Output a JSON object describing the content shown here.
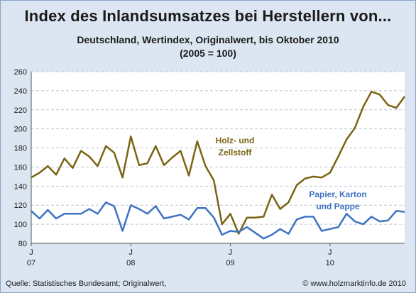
{
  "header": {
    "title": "Index des Inlandsumsatzes bei Herstellern von...",
    "subtitle": "Deutschland, Wertindex, Originalwert, bis Oktober 2010",
    "base_note": "(2005 = 100)"
  },
  "footer": {
    "source": "Quelle: Statistisches Bundesamt; Originalwert,",
    "copyright": "© www.holzmarktinfo.de 2010"
  },
  "chart_data": {
    "type": "line",
    "title": "Index des Inlandsumsatzes bei Herstellern von...",
    "subtitle": "Deutschland, Wertindex, Originalwert, bis Oktober 2010",
    "ylim": [
      80,
      260
    ],
    "yticks": [
      80,
      100,
      120,
      140,
      160,
      180,
      200,
      220,
      240,
      260
    ],
    "grid": true,
    "x_tick_labels": [
      {
        "month": "J",
        "year": "07",
        "index": 0
      },
      {
        "month": "J",
        "year": "08",
        "index": 12
      },
      {
        "month": "J",
        "year": "09",
        "index": 24
      },
      {
        "month": "J",
        "year": "10",
        "index": 36
      }
    ],
    "x_count": 46,
    "series": [
      {
        "name": "Holz- und Zellstoff",
        "label_lines": [
          "Holz- und",
          "Zellstoff"
        ],
        "color": "#7a6412",
        "values": [
          149,
          154,
          161,
          152,
          169,
          159,
          177,
          171,
          161,
          182,
          175,
          149,
          192,
          162,
          164,
          182,
          162,
          170,
          177,
          151,
          187,
          161,
          146,
          100,
          111,
          90,
          107,
          107,
          108,
          131,
          116,
          123,
          141,
          148,
          150,
          149,
          154,
          171,
          189,
          201,
          223,
          239,
          236,
          225,
          222,
          234
        ]
      },
      {
        "name": "Papier, Karton und Pappe",
        "label_lines": [
          "Papier, Karton",
          "und Pappe"
        ],
        "color": "#3d73c1",
        "values": [
          114,
          106,
          115,
          106,
          111,
          111,
          111,
          116,
          111,
          123,
          119,
          93,
          120,
          116,
          111,
          119,
          106,
          108,
          110,
          105,
          117,
          117,
          107,
          89,
          93,
          92,
          97,
          91,
          85,
          89,
          95,
          90,
          105,
          108,
          108,
          93,
          95,
          97,
          111,
          103,
          100,
          108,
          103,
          104,
          114,
          113
        ]
      }
    ]
  }
}
